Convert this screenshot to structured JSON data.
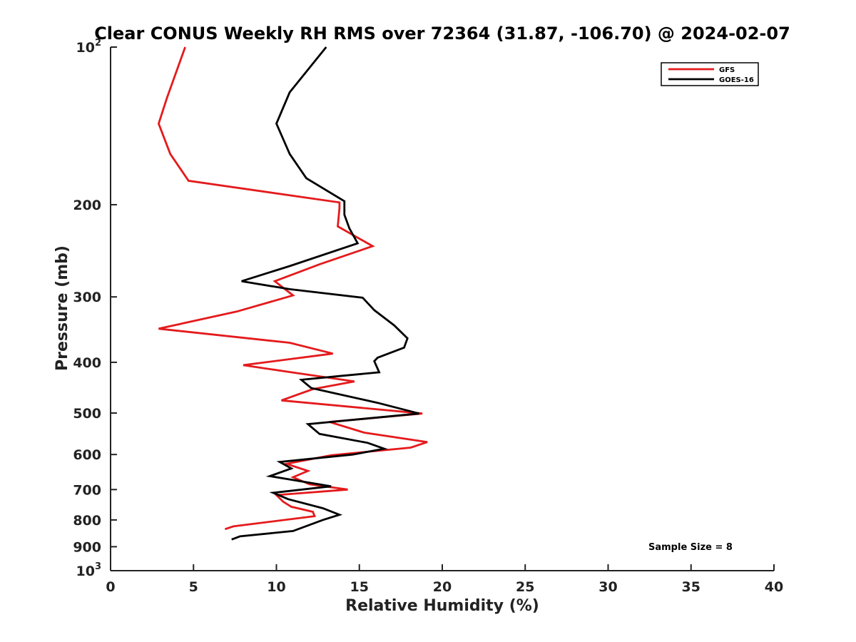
{
  "chart_data": {
    "type": "line",
    "title": "Clear CONUS Weekly RH RMS over 72364 (31.87, -106.70) @ 2024-02-07",
    "xlabel": "Relative Humidity (%)",
    "ylabel": "Pressure (mb)",
    "xlim": [
      0,
      40
    ],
    "ylim": [
      100,
      1000
    ],
    "y_scale": "log",
    "y_reversed": true,
    "x_ticks": [
      0,
      5,
      10,
      15,
      20,
      25,
      30,
      35,
      40
    ],
    "x_tick_labels": [
      "0",
      "5",
      "10",
      "15",
      "20",
      "25",
      "30",
      "35",
      "40"
    ],
    "y_ticks": [
      100,
      200,
      300,
      400,
      500,
      600,
      700,
      800,
      900,
      1000
    ],
    "y_tick_labels": [
      {
        "base": "10",
        "exp": "2"
      },
      {
        "base": "200",
        "exp": ""
      },
      {
        "base": "300",
        "exp": ""
      },
      {
        "base": "400",
        "exp": ""
      },
      {
        "base": "500",
        "exp": ""
      },
      {
        "base": "600",
        "exp": ""
      },
      {
        "base": "700",
        "exp": ""
      },
      {
        "base": "800",
        "exp": ""
      },
      {
        "base": "900",
        "exp": ""
      },
      {
        "base": "10",
        "exp": "3"
      }
    ],
    "grid": false,
    "legend_position": "top-right",
    "annotation": "Sample Size = 8",
    "series": [
      {
        "name": "GFS",
        "color": "#e41a1c",
        "points": [
          [
            4.5,
            100
          ],
          [
            3.4,
            125
          ],
          [
            2.9,
            140
          ],
          [
            3.6,
            160
          ],
          [
            4.7,
            180
          ],
          [
            13.8,
            198
          ],
          [
            13.8,
            203
          ],
          [
            13.7,
            220
          ],
          [
            15.8,
            240
          ],
          [
            12.6,
            260
          ],
          [
            9.9,
            280
          ],
          [
            11.0,
            298
          ],
          [
            7.6,
            320
          ],
          [
            2.9,
            345
          ],
          [
            10.8,
            367
          ],
          [
            13.4,
            385
          ],
          [
            8.0,
            405
          ],
          [
            10.9,
            418
          ],
          [
            14.7,
            435
          ],
          [
            12.2,
            450
          ],
          [
            10.3,
            473
          ],
          [
            18.8,
            501
          ],
          [
            13.2,
            520
          ],
          [
            15.3,
            545
          ],
          [
            19.1,
            568
          ],
          [
            18.1,
            582
          ],
          [
            13.3,
            602
          ],
          [
            10.6,
            625
          ],
          [
            11.9,
            645
          ],
          [
            11.0,
            663
          ],
          [
            12.0,
            684
          ],
          [
            14.3,
            700
          ],
          [
            10.0,
            717
          ],
          [
            10.4,
            738
          ],
          [
            10.9,
            755
          ],
          [
            12.2,
            772
          ],
          [
            12.3,
            787
          ],
          [
            7.4,
            823
          ],
          [
            6.9,
            833
          ]
        ]
      },
      {
        "name": "GOES-16",
        "color": "#000000",
        "points": [
          [
            13.0,
            100
          ],
          [
            10.8,
            122
          ],
          [
            10.0,
            140
          ],
          [
            10.8,
            160
          ],
          [
            11.8,
            178
          ],
          [
            14.1,
            197
          ],
          [
            14.1,
            209
          ],
          [
            14.4,
            222
          ],
          [
            14.9,
            237
          ],
          [
            10.8,
            262
          ],
          [
            7.9,
            280
          ],
          [
            10.8,
            290
          ],
          [
            15.2,
            301
          ],
          [
            15.9,
            318
          ],
          [
            17.1,
            340
          ],
          [
            17.9,
            360
          ],
          [
            17.7,
            375
          ],
          [
            16.1,
            392
          ],
          [
            15.9,
            398
          ],
          [
            16.2,
            418
          ],
          [
            13.8,
            425
          ],
          [
            11.5,
            432
          ],
          [
            12.1,
            448
          ],
          [
            16.1,
            478
          ],
          [
            18.6,
            501
          ],
          [
            11.9,
            525
          ],
          [
            12.6,
            548
          ],
          [
            15.5,
            570
          ],
          [
            16.5,
            585
          ],
          [
            14.6,
            600
          ],
          [
            10.2,
            620
          ],
          [
            10.9,
            638
          ],
          [
            9.6,
            660
          ],
          [
            13.3,
            690
          ],
          [
            9.8,
            710
          ],
          [
            10.7,
            730
          ],
          [
            12.8,
            760
          ],
          [
            13.8,
            782
          ],
          [
            12.8,
            800
          ],
          [
            11.0,
            840
          ],
          [
            7.8,
            860
          ],
          [
            7.3,
            872
          ]
        ]
      }
    ]
  }
}
